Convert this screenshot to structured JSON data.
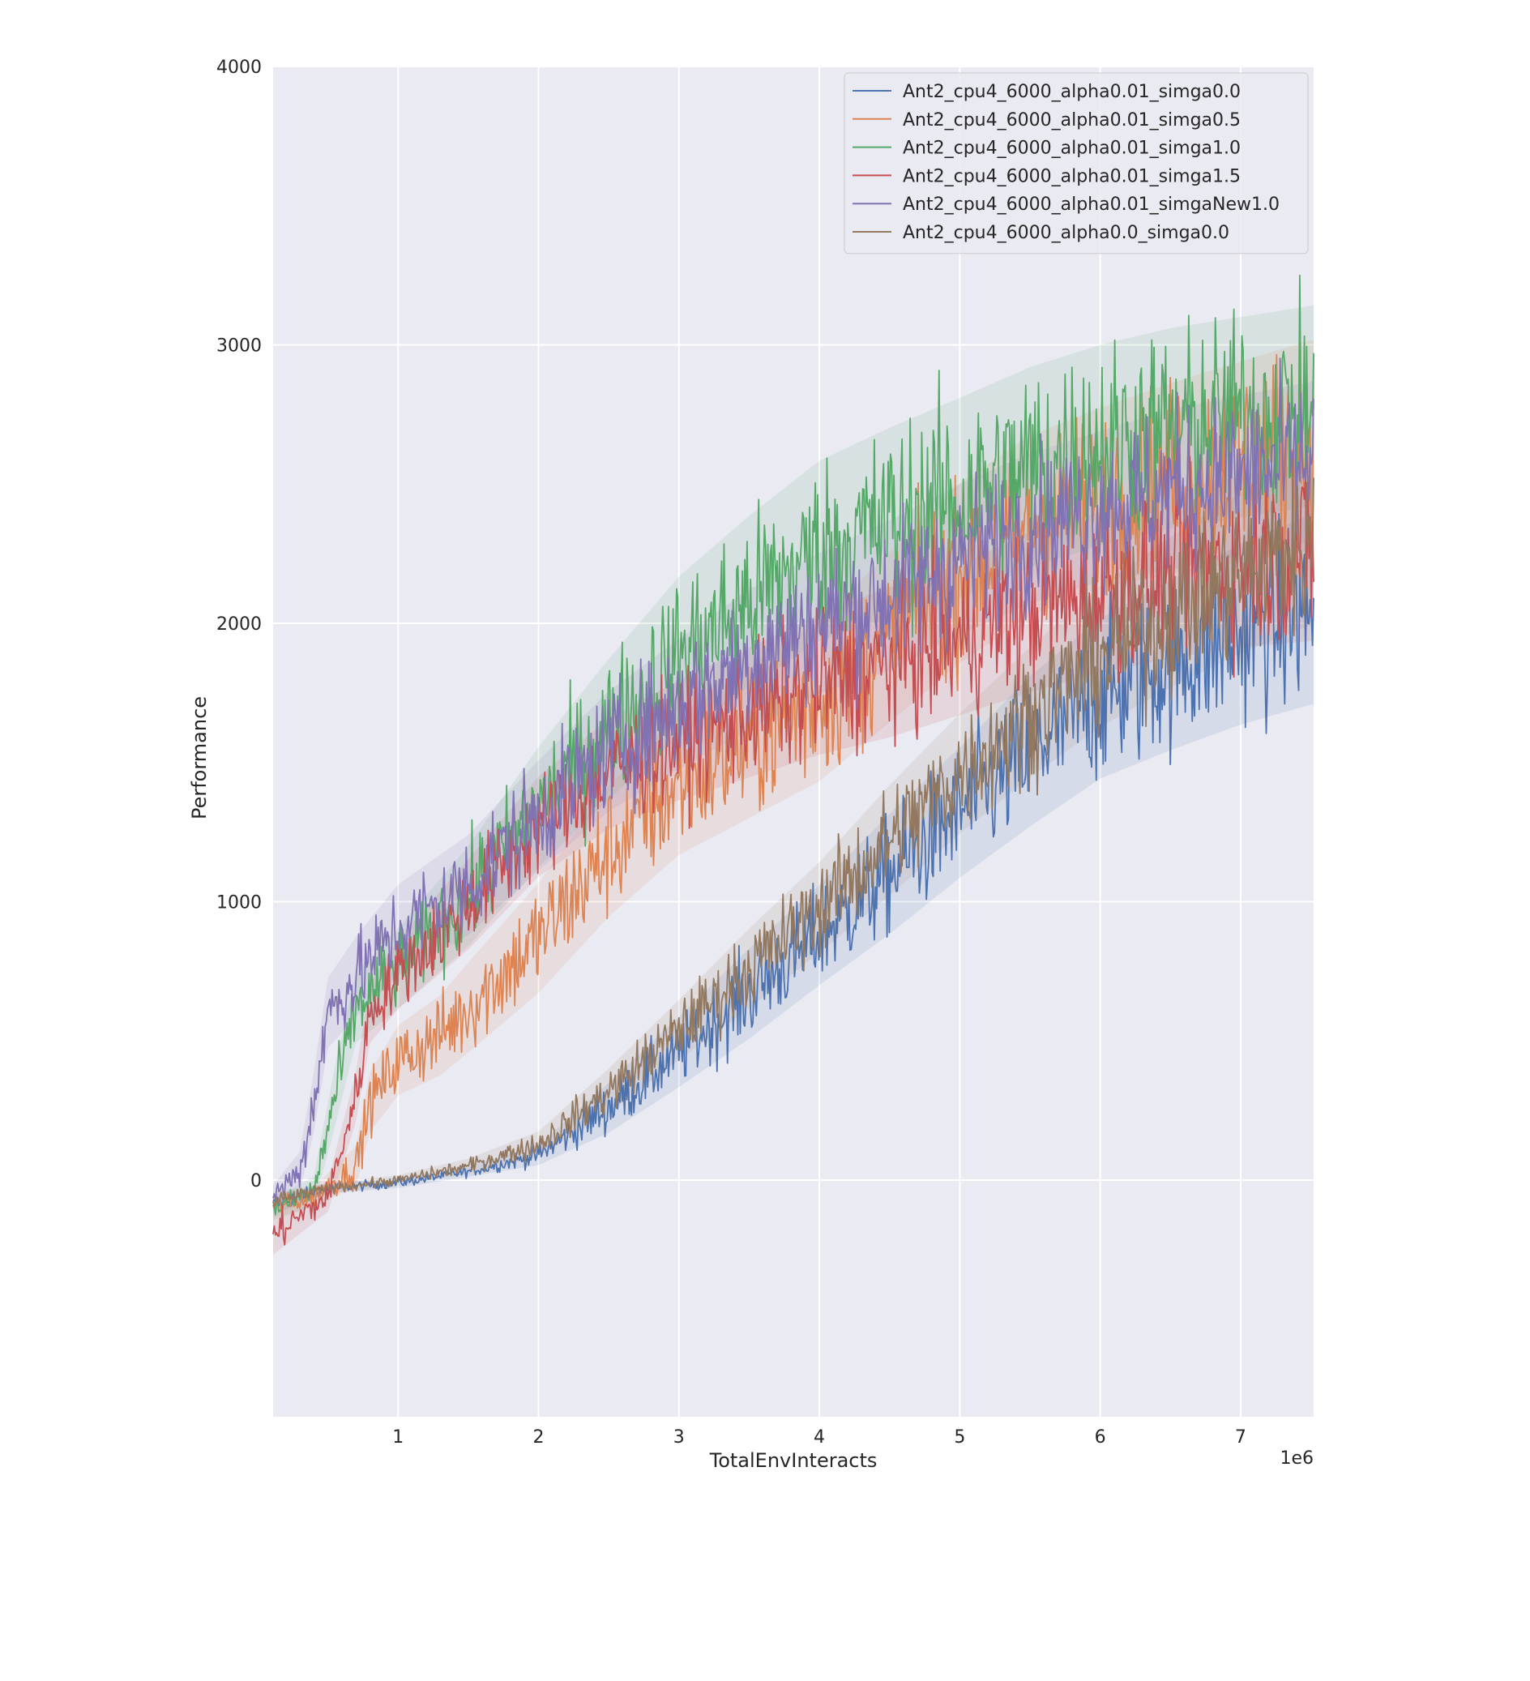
{
  "chart_data": {
    "type": "line",
    "title": "",
    "xlabel": "TotalEnvInteracts",
    "ylabel": "Performance",
    "x_offset_label": "1e6",
    "xlim": [
      0.11,
      7.52
    ],
    "ylim": [
      -850,
      4000
    ],
    "x_ticks": [
      1,
      2,
      3,
      4,
      5,
      6,
      7
    ],
    "x_tick_labels": [
      "1",
      "2",
      "3",
      "4",
      "5",
      "6",
      "7"
    ],
    "y_ticks": [
      0,
      1000,
      2000,
      3000,
      4000
    ],
    "y_tick_labels": [
      "0",
      "1000",
      "2000",
      "3000",
      "4000"
    ],
    "grid": true,
    "legend_position": "top-right",
    "x_unit_scale": 1000000,
    "series": [
      {
        "name": "Ant2_cpu4_6000_alpha0.01_simga0.0",
        "color": "#4c72b0",
        "x": [
          0.1,
          0.5,
          1.0,
          1.5,
          2.0,
          2.5,
          3.0,
          3.5,
          4.0,
          4.5,
          5.0,
          5.5,
          6.0,
          6.5,
          7.0,
          7.5
        ],
        "y": [
          -90,
          -30,
          -10,
          30,
          90,
          260,
          460,
          670,
          880,
          1100,
          1320,
          1540,
          1730,
          1850,
          1960,
          2050
        ],
        "noise": [
          20,
          10,
          10,
          10,
          20,
          50,
          70,
          90,
          100,
          120,
          130,
          150,
          160,
          170,
          180,
          190
        ]
      },
      {
        "name": "Ant2_cpu4_6000_alpha0.01_simga0.5",
        "color": "#dd8452",
        "x": [
          0.1,
          0.4,
          0.7,
          0.8,
          1.0,
          1.3,
          1.5,
          2.0,
          2.5,
          3.0,
          3.5,
          4.0,
          4.5,
          5.0,
          5.5,
          6.0,
          6.5,
          7.0,
          7.5
        ],
        "y": [
          -100,
          -60,
          50,
          280,
          430,
          520,
          620,
          870,
          1180,
          1420,
          1570,
          1720,
          1950,
          2180,
          2350,
          2450,
          2520,
          2580,
          2640
        ],
        "noise": [
          20,
          20,
          40,
          60,
          70,
          80,
          90,
          110,
          130,
          140,
          150,
          160,
          170,
          180,
          180,
          180,
          190,
          200,
          210
        ]
      },
      {
        "name": "Ant2_cpu4_6000_alpha0.01_simga1.0",
        "color": "#55a868",
        "x": [
          0.1,
          0.4,
          0.55,
          0.7,
          1.0,
          1.5,
          2.0,
          2.5,
          3.0,
          3.5,
          4.0,
          4.5,
          5.0,
          5.5,
          6.0,
          6.5,
          7.0,
          7.5
        ],
        "y": [
          -110,
          -40,
          300,
          620,
          760,
          1020,
          1340,
          1620,
          1880,
          2080,
          2260,
          2360,
          2450,
          2560,
          2640,
          2700,
          2740,
          2780
        ],
        "noise": [
          20,
          30,
          60,
          70,
          80,
          100,
          120,
          140,
          160,
          170,
          180,
          190,
          200,
          200,
          200,
          200,
          200,
          200
        ]
      },
      {
        "name": "Ant2_cpu4_6000_alpha0.01_simga1.5",
        "color": "#c44e52",
        "x": [
          0.1,
          0.5,
          0.7,
          0.8,
          1.0,
          1.5,
          2.0,
          2.5,
          3.0,
          3.5,
          4.0,
          4.5,
          5.0,
          5.5,
          6.0,
          6.5,
          7.0,
          7.5
        ],
        "y": [
          -200,
          -60,
          300,
          600,
          740,
          990,
          1270,
          1460,
          1580,
          1680,
          1780,
          1860,
          1940,
          2040,
          2110,
          2180,
          2220,
          2260
        ],
        "noise": [
          40,
          30,
          50,
          60,
          70,
          90,
          100,
          110,
          120,
          130,
          140,
          150,
          150,
          160,
          160,
          170,
          170,
          180
        ]
      },
      {
        "name": "Ant2_cpu4_6000_alpha0.01_simgaNew1.0",
        "color": "#8172b3",
        "x": [
          0.1,
          0.3,
          0.4,
          0.5,
          0.7,
          1.0,
          1.5,
          2.0,
          2.5,
          3.0,
          3.5,
          4.0,
          4.5,
          5.0,
          5.5,
          6.0,
          6.5,
          7.0,
          7.5
        ],
        "y": [
          -60,
          30,
          280,
          600,
          730,
          900,
          1060,
          1310,
          1540,
          1710,
          1870,
          2000,
          2100,
          2230,
          2340,
          2420,
          2480,
          2530,
          2580
        ],
        "noise": [
          20,
          40,
          60,
          70,
          80,
          90,
          100,
          110,
          120,
          130,
          140,
          140,
          150,
          150,
          150,
          150,
          160,
          160,
          160
        ]
      },
      {
        "name": "Ant2_cpu4_6000_alpha0.0_simga0.0",
        "color": "#937860",
        "x": [
          0.1,
          0.5,
          1.0,
          1.5,
          2.0,
          2.5,
          3.0,
          3.5,
          4.0,
          4.5,
          5.0,
          5.5,
          6.0,
          6.5,
          7.0,
          7.5
        ],
        "y": [
          -80,
          -30,
          0,
          50,
          130,
          320,
          540,
          760,
          980,
          1220,
          1460,
          1680,
          1880,
          2040,
          2180,
          2300
        ],
        "noise": [
          20,
          10,
          10,
          15,
          25,
          45,
          60,
          80,
          90,
          110,
          120,
          130,
          140,
          150,
          160,
          170
        ]
      }
    ]
  }
}
